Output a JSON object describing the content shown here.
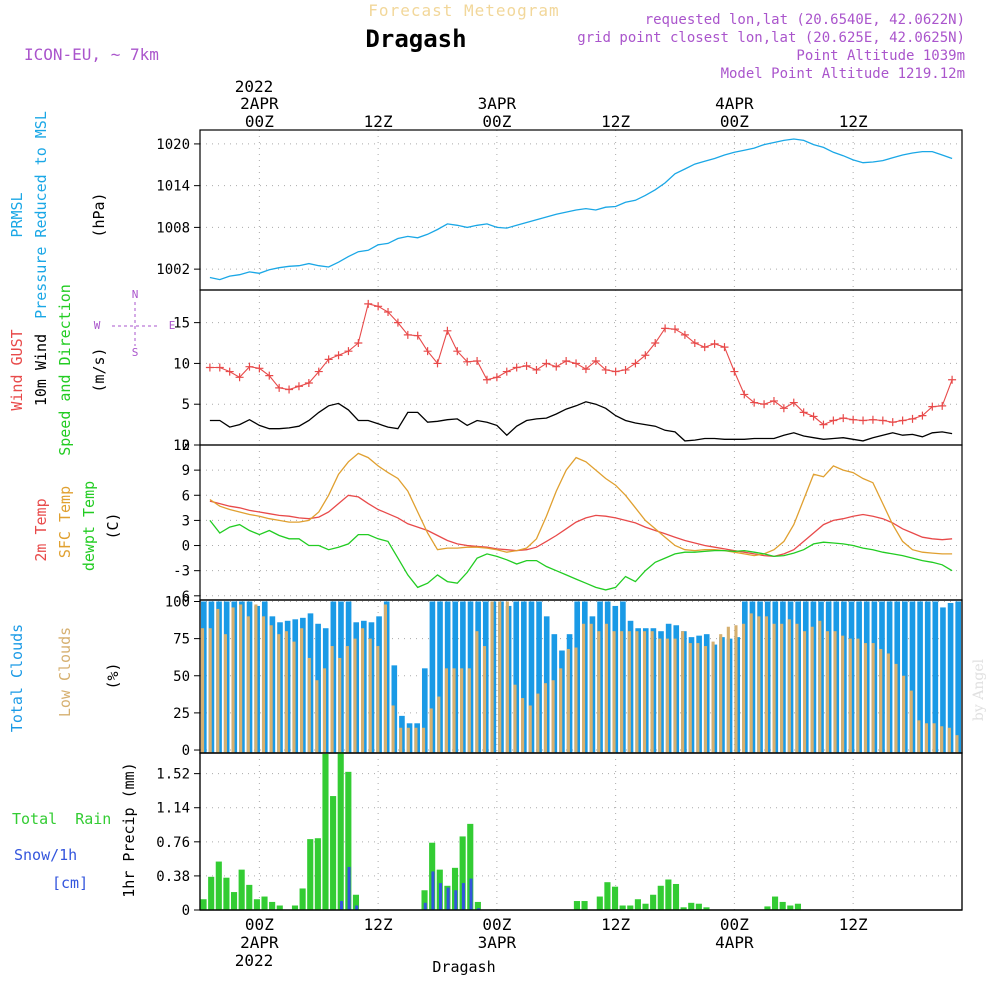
{
  "header": {
    "subtitle_top": "Forecast Meteogram",
    "location": "Dragash",
    "model": "ICON-EU, ~ 7km",
    "requested": "requested lon,lat (20.6540E, 42.0622N)",
    "gridpoint": "grid point closest lon,lat (20.625E, 42.0625N)",
    "point_alt": "Point Altitude 1039m",
    "model_alt": "Model Point Altitude 1219.12m",
    "bottom_label": "Dragash",
    "watermark": "by Angel"
  },
  "time_axis": {
    "top_year": "2022",
    "bottom_year": "2022",
    "ticks": [
      {
        "t": 0,
        "label": "00Z",
        "date": "2APR"
      },
      {
        "t": 12,
        "label": "12Z",
        "date": ""
      },
      {
        "t": 24,
        "label": "00Z",
        "date": "3APR"
      },
      {
        "t": 36,
        "label": "12Z",
        "date": ""
      },
      {
        "t": 48,
        "label": "00Z",
        "date": "4APR"
      },
      {
        "t": 60,
        "label": "12Z",
        "date": ""
      }
    ],
    "range": [
      -6,
      71
    ]
  },
  "colors": {
    "pressure": "#1aa7e6",
    "gust": "#e84a4a",
    "wind": "#000000",
    "temp2m": "#e84a4a",
    "sfc": "#e0a030",
    "dewpt": "#22cc22",
    "total_cloud": "#1a9ae6",
    "low_cloud": "#d6b070",
    "rain": "#33cc33",
    "snow": "#3355dd",
    "label_purple": "#aa55cc"
  },
  "chart_data": [
    {
      "type": "line",
      "panel": "pressure",
      "ylabel_lines": [
        "PRMSL",
        "Pressure Reduced to MSL"
      ],
      "unit": "(hPa)",
      "ylim": [
        999,
        1022
      ],
      "yticks": [
        1002,
        1008,
        1014,
        1020
      ],
      "t": [
        -5,
        -4,
        -3,
        -2,
        -1,
        0,
        1,
        2,
        3,
        4,
        5,
        6,
        7,
        8,
        9,
        10,
        11,
        12,
        13,
        14,
        15,
        16,
        17,
        18,
        19,
        20,
        21,
        22,
        23,
        24,
        25,
        26,
        27,
        28,
        29,
        30,
        31,
        32,
        33,
        34,
        35,
        36,
        37,
        38,
        39,
        40,
        41,
        42,
        43,
        44,
        45,
        46,
        47,
        48,
        49,
        50,
        51,
        52,
        53,
        54,
        55,
        56,
        57,
        58,
        59,
        60,
        61,
        62,
        63,
        64,
        65,
        66,
        67,
        68,
        69,
        70
      ],
      "values": [
        1000.8,
        1000.5,
        1001.0,
        1001.2,
        1001.6,
        1001.4,
        1001.9,
        1002.2,
        1002.4,
        1002.5,
        1002.8,
        1002.5,
        1002.3,
        1003.0,
        1003.8,
        1004.5,
        1004.7,
        1005.5,
        1005.7,
        1006.4,
        1006.7,
        1006.5,
        1007.0,
        1007.7,
        1008.5,
        1008.3,
        1008.0,
        1008.3,
        1008.5,
        1008.0,
        1007.9,
        1008.3,
        1008.7,
        1009.1,
        1009.5,
        1009.9,
        1010.2,
        1010.5,
        1010.7,
        1010.5,
        1010.9,
        1011.0,
        1011.6,
        1011.9,
        1012.6,
        1013.4,
        1014.4,
        1015.7,
        1016.4,
        1017.1,
        1017.5,
        1017.9,
        1018.4,
        1018.8,
        1019.1,
        1019.4,
        1019.9,
        1020.2,
        1020.5,
        1020.7,
        1020.5,
        1019.9,
        1019.5,
        1018.8,
        1018.3,
        1017.7,
        1017.3,
        1017.4,
        1017.6,
        1018.0,
        1018.4,
        1018.7,
        1018.9,
        1018.9,
        1018.4,
        1017.9
      ],
      "series_name": ""
    },
    {
      "type": "line",
      "panel": "wind",
      "ylabel_parts": [
        "Wind GUST",
        "10m Wind",
        "Speed and Direction"
      ],
      "unit": "(m/s)",
      "compass": {
        "n": "N",
        "s": "S",
        "w": "W",
        "e": "E"
      },
      "ylim": [
        0,
        19
      ],
      "yticks": [
        0,
        5,
        10,
        15
      ],
      "gust_t": [
        -5,
        -4,
        -3,
        -2,
        -1,
        0,
        1,
        2,
        3,
        4,
        5,
        6,
        7,
        8,
        9,
        10,
        11,
        12,
        13,
        14,
        15,
        16,
        17,
        18,
        19,
        20,
        21,
        22,
        23,
        24,
        25,
        26,
        27,
        28,
        29,
        30,
        31,
        32,
        33,
        34,
        35,
        36,
        37,
        38,
        39,
        40,
        41,
        42,
        43,
        44,
        45,
        46,
        47,
        48,
        49,
        50,
        51,
        52,
        53,
        54,
        55,
        56,
        57,
        58,
        59,
        60,
        61,
        62,
        63,
        64,
        65,
        66,
        67,
        68,
        69,
        70
      ],
      "gust": [
        9.5,
        9.5,
        9.0,
        8.3,
        9.6,
        9.4,
        8.5,
        7.0,
        6.8,
        7.2,
        7.6,
        9.0,
        10.5,
        11.0,
        11.5,
        12.5,
        17.3,
        17.0,
        16.3,
        15.0,
        13.5,
        13.4,
        11.5,
        10.0,
        14.0,
        11.5,
        10.2,
        10.3,
        8.0,
        8.3,
        9.0,
        9.5,
        9.7,
        9.2,
        10.0,
        9.6,
        10.3,
        10.0,
        9.3,
        10.3,
        9.2,
        9.0,
        9.2,
        10.0,
        11.0,
        12.5,
        14.3,
        14.2,
        13.5,
        12.5,
        12.0,
        12.4,
        12.0,
        9.0,
        6.2,
        5.2,
        5.0,
        5.4,
        4.5,
        5.2,
        4.0,
        3.5,
        2.5,
        3.0,
        3.3,
        3.1,
        3.0,
        3.1,
        3.0,
        2.8,
        3.0,
        3.2,
        3.6,
        4.7,
        4.8,
        8.0
      ],
      "wind": [
        3.0,
        3.0,
        2.2,
        2.5,
        3.1,
        2.4,
        2.0,
        2.0,
        2.1,
        2.3,
        3.0,
        4.0,
        4.8,
        5.1,
        4.3,
        3.0,
        3.0,
        2.6,
        2.2,
        2.0,
        4.0,
        4.0,
        2.8,
        2.9,
        3.1,
        3.2,
        2.4,
        3.0,
        2.8,
        2.4,
        1.2,
        2.3,
        3.0,
        3.2,
        3.3,
        3.8,
        4.4,
        4.8,
        5.3,
        5.0,
        4.5,
        3.6,
        3.0,
        2.7,
        2.5,
        2.3,
        1.8,
        1.6,
        0.5,
        0.6,
        0.8,
        0.8,
        0.7,
        0.7,
        0.7,
        0.8,
        0.8,
        0.8,
        1.2,
        1.5,
        1.1,
        0.9,
        0.7,
        0.8,
        0.9,
        0.7,
        0.5,
        0.9,
        1.2,
        1.5,
        1.2,
        1.3,
        1.0,
        1.5,
        1.6,
        1.4
      ]
    },
    {
      "type": "line",
      "panel": "temperature",
      "series": [
        {
          "name": "2m Temp",
          "values": [
            5.3,
            5.0,
            4.7,
            4.5,
            4.2,
            4.0,
            3.8,
            3.6,
            3.5,
            3.3,
            3.2,
            3.4,
            4.0,
            5.0,
            6.0,
            5.8,
            5.0,
            4.3,
            3.8,
            3.3,
            2.6,
            2.2,
            1.8,
            1.2,
            0.6,
            0.2,
            0.0,
            -0.1,
            -0.2,
            -0.4,
            -0.5,
            -0.6,
            -0.5,
            -0.2,
            0.5,
            1.2,
            2.0,
            2.8,
            3.3,
            3.6,
            3.5,
            3.3,
            3.0,
            2.7,
            2.2,
            1.8,
            1.4,
            1.0,
            0.6,
            0.3,
            0.0,
            -0.2,
            -0.4,
            -0.6,
            -0.8,
            -1.0,
            -1.2,
            -1.3,
            -1.0,
            -0.5,
            0.5,
            1.5,
            2.5,
            3.0,
            3.2,
            3.5,
            3.7,
            3.5,
            3.2,
            2.7,
            2.0,
            1.5,
            1.0,
            0.8,
            0.7,
            0.8
          ]
        },
        {
          "name": "SFC Temp",
          "values": [
            5.5,
            4.7,
            4.3,
            4.0,
            3.7,
            3.5,
            3.2,
            3.0,
            2.8,
            2.8,
            3.0,
            4.0,
            6.0,
            8.5,
            10.0,
            11.0,
            10.5,
            9.5,
            8.7,
            8.0,
            6.5,
            4.0,
            1.5,
            -0.5,
            -0.3,
            -0.3,
            -0.2,
            -0.2,
            -0.3,
            -0.5,
            -0.8,
            -0.6,
            -0.3,
            0.8,
            3.5,
            6.5,
            9.0,
            10.5,
            10.0,
            9.0,
            8.0,
            7.2,
            6.0,
            4.5,
            3.0,
            2.0,
            1.0,
            0.0,
            -0.5,
            -0.6,
            -0.5,
            -0.5,
            -0.6,
            -0.8,
            -1.0,
            -1.2,
            -1.0,
            -0.5,
            0.5,
            2.5,
            5.5,
            8.5,
            8.2,
            9.5,
            9.0,
            8.7,
            8.0,
            7.5,
            5.0,
            2.5,
            0.5,
            -0.5,
            -0.8,
            -0.9,
            -1.0,
            -1.0
          ]
        },
        {
          "name": "dewpt Temp",
          "values": [
            3.0,
            1.5,
            2.2,
            2.5,
            1.8,
            1.3,
            1.8,
            1.2,
            0.8,
            0.8,
            0.0,
            0.0,
            -0.5,
            -0.2,
            0.2,
            1.3,
            1.3,
            0.8,
            0.5,
            -1.5,
            -3.5,
            -5.0,
            -4.5,
            -3.5,
            -4.3,
            -4.5,
            -3.2,
            -1.5,
            -1.0,
            -1.3,
            -1.7,
            -2.2,
            -1.8,
            -1.8,
            -2.5,
            -3.0,
            -3.5,
            -4.0,
            -4.5,
            -5.0,
            -5.3,
            -5.0,
            -3.7,
            -4.3,
            -3.0,
            -2.0,
            -1.5,
            -1.0,
            -0.8,
            -0.8,
            -0.7,
            -0.6,
            -0.6,
            -0.7,
            -0.6,
            -0.8,
            -1.0,
            -1.3,
            -1.2,
            -0.9,
            -0.5,
            0.2,
            0.4,
            0.3,
            0.2,
            0.0,
            -0.3,
            -0.5,
            -0.8,
            -1.0,
            -1.2,
            -1.5,
            -1.8,
            -2.0,
            -2.3,
            -3.0
          ]
        }
      ],
      "ylabel_parts": [
        "2m Temp",
        "SFC Temp",
        "dewpt Temp"
      ],
      "unit": "(C)",
      "ylim": [
        -6.5,
        12
      ],
      "yticks": [
        -6,
        -3,
        0,
        3,
        6,
        9,
        12
      ]
    },
    {
      "type": "bar",
      "panel": "clouds",
      "ylabel_parts": [
        "Total Clouds",
        "Low Clouds"
      ],
      "unit": "(%)",
      "ylim": [
        -2,
        101
      ],
      "yticks": [
        0,
        25,
        50,
        75,
        100
      ],
      "series": [
        {
          "name": "Total Clouds",
          "values": [
            100,
            100,
            100,
            100,
            100,
            100,
            100,
            97,
            100,
            90,
            86,
            87,
            88,
            89,
            92,
            85,
            82,
            100,
            100,
            100,
            86,
            87,
            86,
            90,
            100,
            57,
            23,
            18,
            18,
            55,
            100,
            100,
            100,
            100,
            100,
            100,
            100,
            100,
            100,
            100,
            97,
            100,
            100,
            100,
            100,
            90,
            78,
            67,
            78,
            100,
            100,
            90,
            100,
            100,
            97,
            100,
            87,
            82,
            82,
            82,
            80,
            85,
            84,
            80,
            76,
            77,
            78,
            71,
            76,
            75,
            76,
            100,
            100,
            100,
            100,
            100,
            100,
            100,
            100,
            100,
            100,
            100,
            100,
            100,
            100,
            100,
            100,
            100,
            100,
            100,
            100,
            100,
            100,
            100,
            100,
            100,
            100,
            96,
            99,
            100
          ]
        },
        {
          "name": "Low Clouds",
          "values": [
            82,
            82,
            95,
            78,
            96,
            98,
            90,
            98,
            90,
            84,
            78,
            80,
            73,
            82,
            62,
            47,
            55,
            70,
            62,
            70,
            75,
            82,
            75,
            70,
            98,
            30,
            15,
            15,
            15,
            15,
            28,
            36,
            55,
            55,
            55,
            55,
            80,
            70,
            100,
            100,
            100,
            44,
            35,
            30,
            38,
            45,
            47,
            55,
            68,
            69,
            85,
            85,
            80,
            85,
            80,
            80,
            80,
            80,
            80,
            80,
            75,
            75,
            75,
            80,
            72,
            72,
            70,
            73,
            78,
            83,
            84,
            85,
            92,
            90,
            90,
            85,
            85,
            88,
            85,
            80,
            83,
            87,
            80,
            80,
            77,
            75,
            75,
            72,
            72,
            68,
            65,
            58,
            50,
            40,
            20,
            18,
            18,
            16,
            15,
            10
          ]
        }
      ]
    },
    {
      "type": "bar",
      "panel": "precip",
      "legend_lines": [
        "Total  Rain",
        "Snow/1h",
        "[cm]"
      ],
      "ylabel": "1hr Precip (mm)",
      "ylim": [
        0,
        1.75
      ],
      "yticks": [
        0,
        0.38,
        0.76,
        1.14,
        1.52
      ],
      "series": [
        {
          "name": "Total",
          "values": [
            0.12,
            0.37,
            0.54,
            0.36,
            0.2,
            0.45,
            0.28,
            0.12,
            0.15,
            0.09,
            0.05,
            0,
            0.05,
            0.24,
            0.79,
            0.8,
            1.74,
            1.27,
            1.76,
            1.54,
            0.17,
            0,
            0,
            0,
            0,
            0,
            0,
            0,
            0,
            0.22,
            0.75,
            0.45,
            0.27,
            0.47,
            0.82,
            0.96,
            0.09,
            0,
            0,
            0,
            0,
            0,
            0,
            0,
            0,
            0,
            0,
            0,
            0,
            0.1,
            0.1,
            0,
            0.15,
            0.31,
            0.26,
            0.05,
            0.05,
            0.12,
            0.07,
            0.17,
            0.27,
            0.34,
            0.29,
            0.03,
            0.08,
            0.07,
            0.03,
            0,
            0,
            0,
            0,
            0,
            0,
            0,
            0.04,
            0.15,
            0.09,
            0.05,
            0.07,
            0,
            0,
            0,
            0,
            0,
            0,
            0,
            0,
            0,
            0,
            0,
            0,
            0,
            0,
            0,
            0,
            0,
            0,
            0,
            0,
            0
          ]
        },
        {
          "name": "Snow/1h",
          "values": [
            0,
            0,
            0,
            0,
            0,
            0,
            0,
            0,
            0,
            0,
            0,
            0,
            0,
            0,
            0,
            0,
            0,
            0,
            0.1,
            0.48,
            0.05,
            0,
            0,
            0,
            0,
            0,
            0,
            0,
            0,
            0.08,
            0.43,
            0.3,
            0.25,
            0.22,
            0.3,
            0.35,
            0.02,
            0,
            0,
            0,
            0,
            0,
            0,
            0,
            0,
            0,
            0,
            0,
            0,
            0,
            0,
            0,
            0,
            0,
            0,
            0,
            0,
            0,
            0,
            0,
            0,
            0,
            0,
            0,
            0,
            0,
            0,
            0,
            0,
            0,
            0,
            0,
            0,
            0,
            0,
            0,
            0,
            0,
            0,
            0,
            0,
            0,
            0,
            0,
            0,
            0,
            0,
            0,
            0,
            0,
            0,
            0,
            0,
            0,
            0,
            0,
            0,
            0,
            0,
            0
          ]
        }
      ]
    }
  ]
}
